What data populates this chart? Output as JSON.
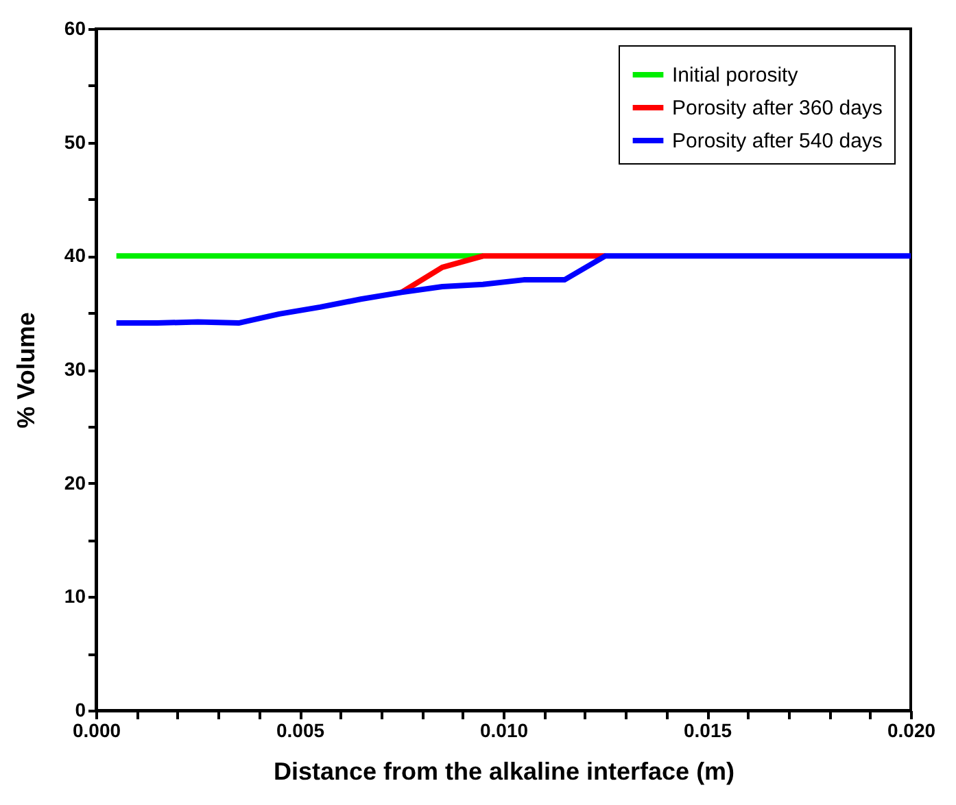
{
  "chart_data": {
    "type": "line",
    "xlabel": "Distance from the alkaline interface (m)",
    "ylabel": "% Volume",
    "series": [
      {
        "name": "Initial porosity",
        "color": "#00ee00",
        "x": [
          0.0005,
          0.0015,
          0.0025,
          0.0035,
          0.0045,
          0.0055,
          0.0065,
          0.0075,
          0.0085,
          0.0095
        ],
        "values": [
          40,
          40,
          40,
          40,
          40,
          40,
          40,
          40,
          40,
          40
        ]
      },
      {
        "name": "Porosity after 360 days",
        "color": "#ff0000",
        "x": [
          0.0075,
          0.0085,
          0.0095,
          0.0105,
          0.0115,
          0.0125
        ],
        "values": [
          36.8,
          39.0,
          40,
          40,
          40,
          40
        ]
      },
      {
        "name": "Porosity after 540 days",
        "color": "#0000ff",
        "x": [
          0.0005,
          0.0015,
          0.0025,
          0.0035,
          0.0045,
          0.0055,
          0.0065,
          0.0075,
          0.0085,
          0.0095,
          0.0105,
          0.0115,
          0.0125,
          0.0135,
          0.0145,
          0.0155,
          0.0165,
          0.0175,
          0.0185,
          0.0195,
          0.02
        ],
        "values": [
          34.1,
          34.1,
          34.2,
          34.1,
          34.9,
          35.5,
          36.2,
          36.8,
          37.3,
          37.5,
          37.9,
          37.9,
          40,
          40,
          40,
          40,
          40,
          40,
          40,
          40,
          40
        ]
      }
    ],
    "xlim": [
      0,
      0.02
    ],
    "xticks": [
      {
        "value": 0,
        "label": "0.000"
      },
      {
        "value": 0.001,
        "label": null
      },
      {
        "value": 0.002,
        "label": null
      },
      {
        "value": 0.003,
        "label": null
      },
      {
        "value": 0.004,
        "label": null
      },
      {
        "value": 0.005,
        "label": "0.005"
      },
      {
        "value": 0.006,
        "label": null
      },
      {
        "value": 0.007,
        "label": null
      },
      {
        "value": 0.008,
        "label": null
      },
      {
        "value": 0.009,
        "label": null
      },
      {
        "value": 0.01,
        "label": "0.010"
      },
      {
        "value": 0.011,
        "label": null
      },
      {
        "value": 0.012,
        "label": null
      },
      {
        "value": 0.013,
        "label": null
      },
      {
        "value": 0.014,
        "label": null
      },
      {
        "value": 0.015,
        "label": "0.015"
      },
      {
        "value": 0.016,
        "label": null
      },
      {
        "value": 0.017,
        "label": null
      },
      {
        "value": 0.018,
        "label": null
      },
      {
        "value": 0.019,
        "label": null
      },
      {
        "value": 0.02,
        "label": "0.020"
      }
    ],
    "ylim": [
      0,
      60
    ],
    "yticks": [
      0,
      {
        "value": 5,
        "label": null
      },
      10,
      {
        "value": 15,
        "label": null
      },
      20,
      {
        "value": 25,
        "label": null
      },
      30,
      {
        "value": 35,
        "label": null
      },
      40,
      {
        "value": 45,
        "label": null
      },
      50,
      {
        "value": 55,
        "label": null
      },
      60
    ],
    "legend": "top right",
    "grid": false,
    "line_style": "solid",
    "marker": "none"
  }
}
